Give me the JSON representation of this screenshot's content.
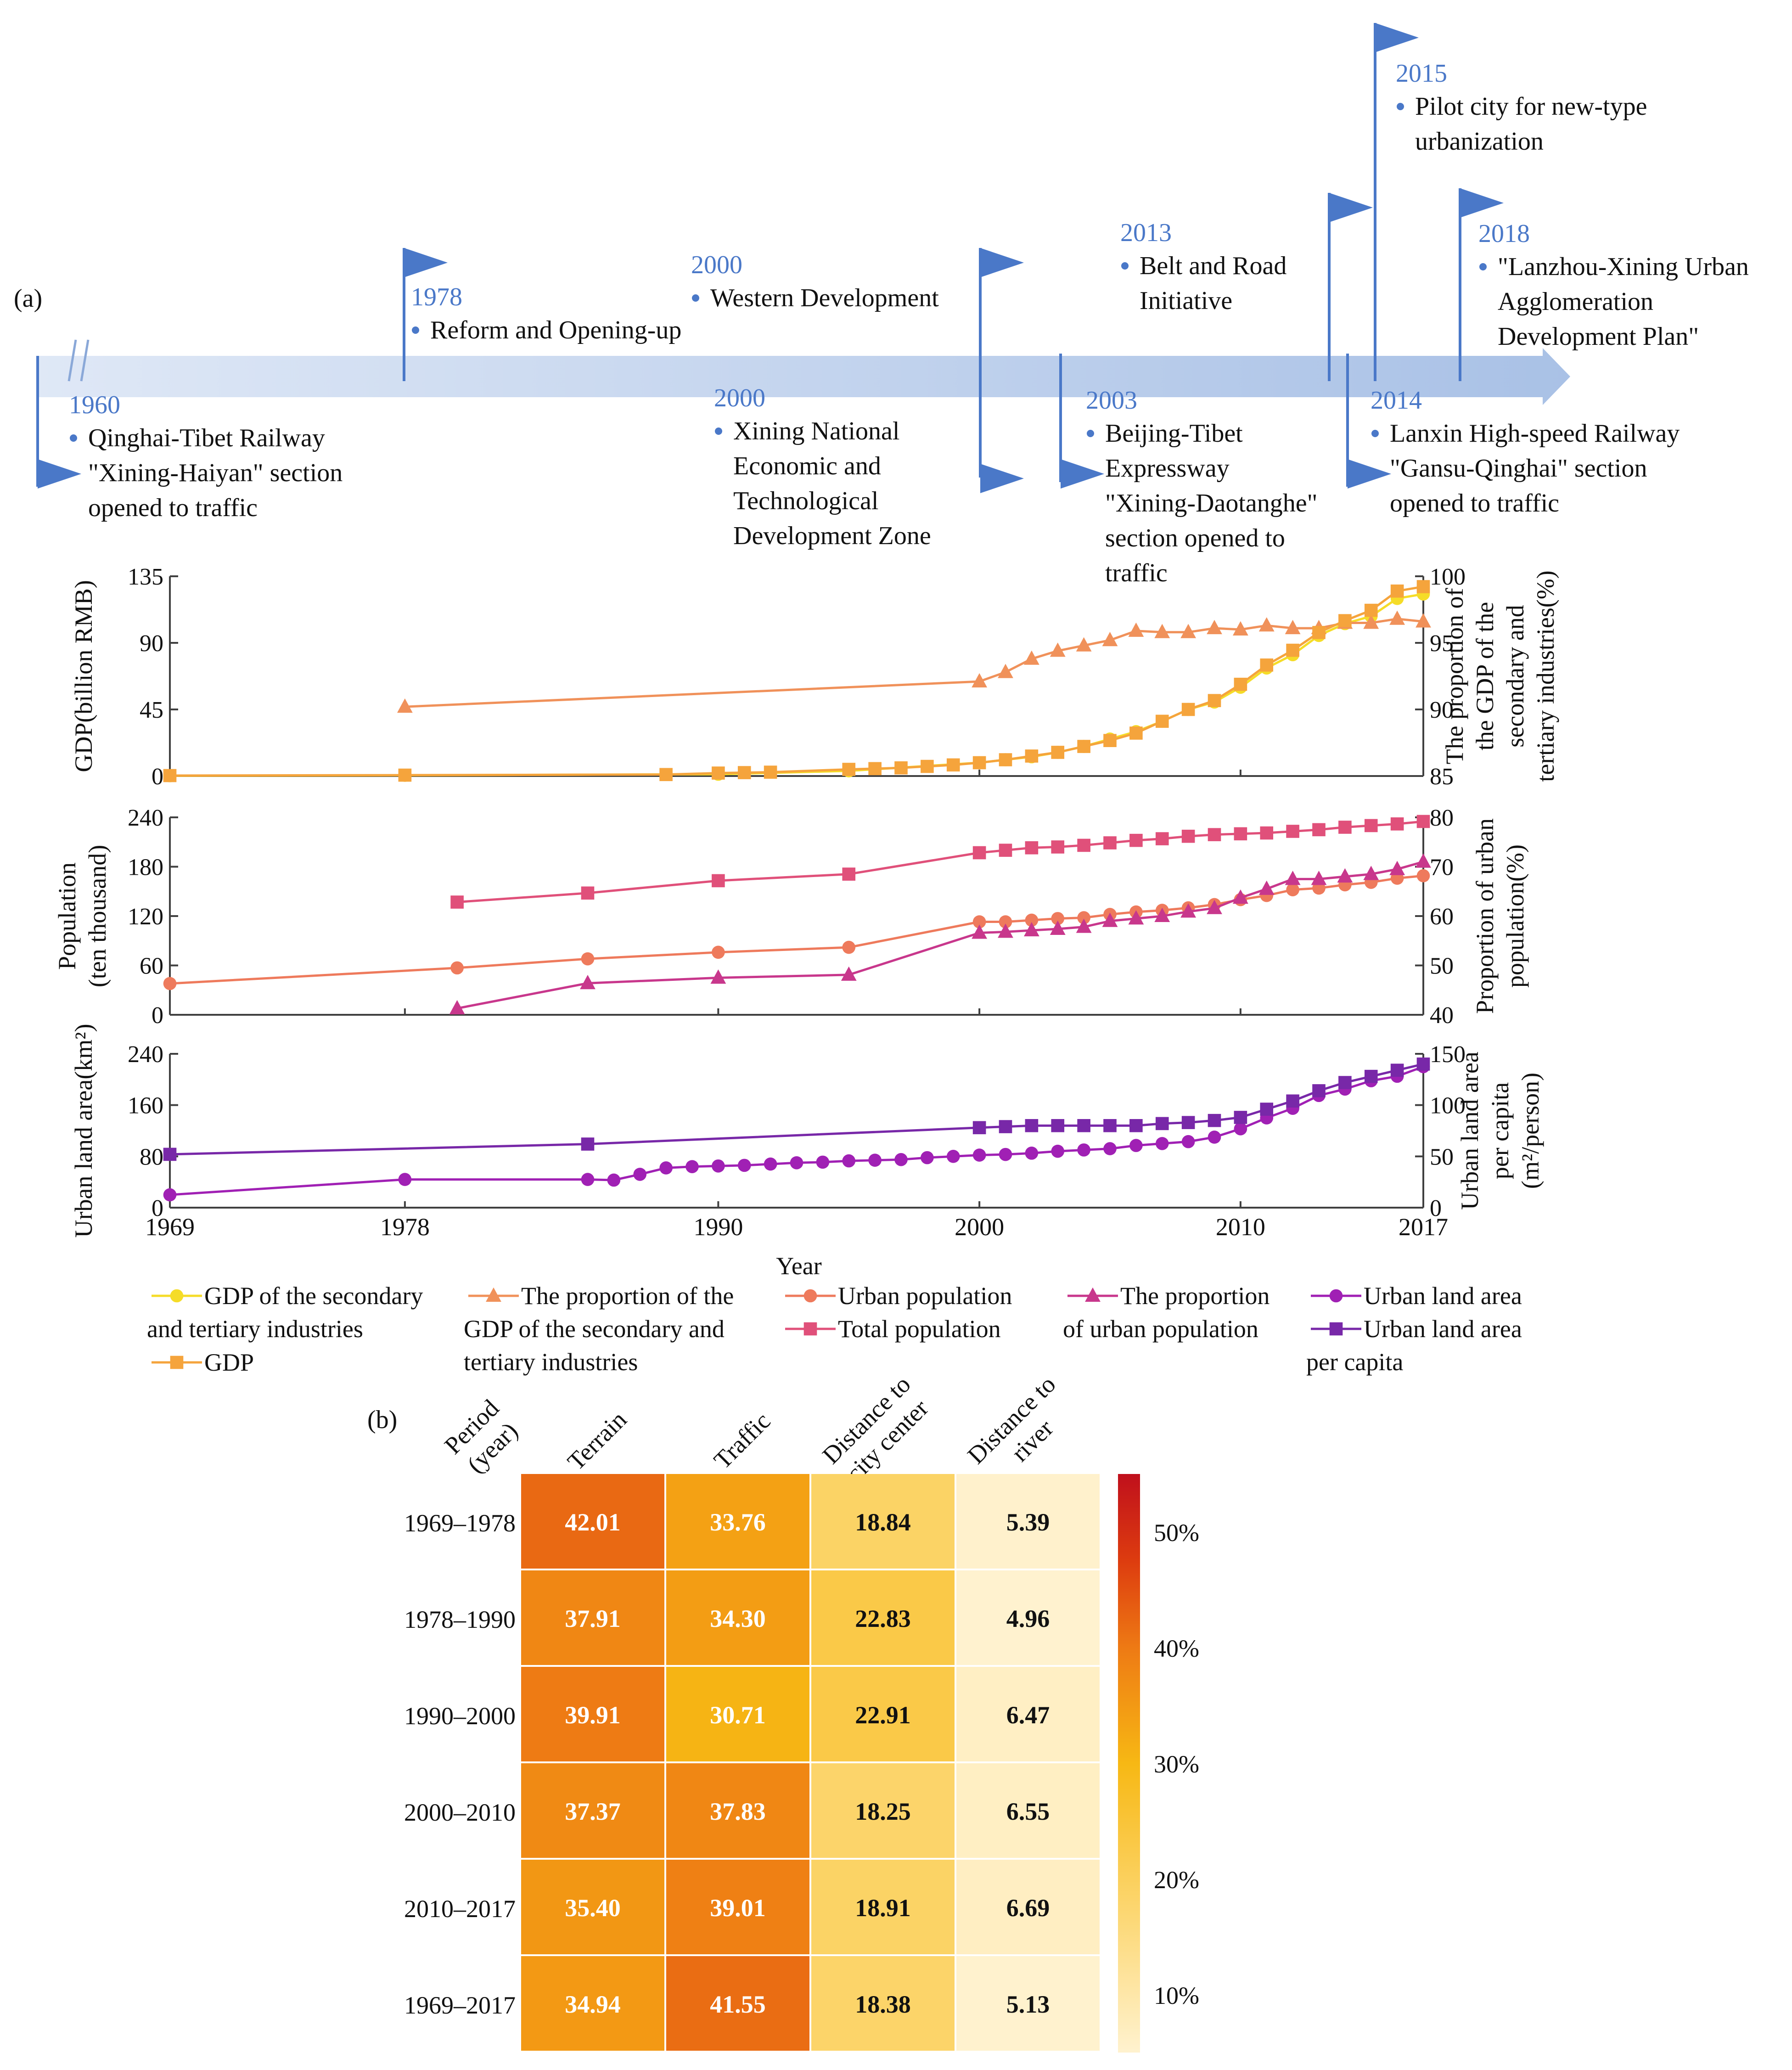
{
  "timeline": {
    "panel_label": "(a)",
    "events": [
      {
        "year": "1960",
        "lines": [
          "Qinghai-Tibet Railway",
          "\"Xining-Haiyan\" section",
          "opened to traffic"
        ]
      },
      {
        "year": "1978",
        "lines": [
          "Reform and Opening-up"
        ]
      },
      {
        "year": "2000",
        "lines": [
          "Western Development"
        ]
      },
      {
        "year": "2000",
        "lines": [
          " Xining National",
          "Economic and",
          "Technological",
          "Development Zone"
        ]
      },
      {
        "year": "2003",
        "lines": [
          "Beijing-Tibet",
          "Expressway",
          "\"Xining-Daotanghe\"",
          "section opened to",
          "traffic"
        ]
      },
      {
        "year": "2013",
        "lines": [
          "Belt and Road",
          "Initiative"
        ]
      },
      {
        "year": "2014",
        "lines": [
          "Lanxin High-speed Railway",
          "\"Gansu-Qinghai\" section",
          "opened to traffic"
        ]
      },
      {
        "year": "2015",
        "lines": [
          "Pilot city for new-type",
          "urbanization"
        ]
      },
      {
        "year": "2018",
        "lines": [
          "\"Lanzhou-Xining Urban",
          "Agglomeration",
          "Development Plan\""
        ]
      }
    ]
  },
  "chart_data": [
    {
      "type": "line",
      "panel": "gdp",
      "ylabel_left": "GDP(billion RMB)",
      "ylabel_right": [
        "The proportion of",
        "the GDP of the",
        "secondary and",
        "tertiary industries(%)"
      ],
      "ylim_left": [
        0,
        135
      ],
      "ylim_right": [
        85,
        100
      ],
      "yticks_left": [
        "0",
        "45",
        "90",
        "135"
      ],
      "yticks_right": [
        "85",
        "90",
        "95",
        "100"
      ],
      "series": [
        {
          "name": "GDP of the secondary and tertiary industries",
          "axis": "left",
          "color": "#f5dc28",
          "marker": "circle",
          "x": [
            1969,
            1978,
            1990,
            1995,
            2000,
            2001,
            2002,
            2003,
            2004,
            2005,
            2006,
            2007,
            2008,
            2009,
            2010,
            2011,
            2012,
            2013,
            2014,
            2015,
            2016,
            2017
          ],
          "y": [
            0.2,
            0.5,
            1.2,
            3.5,
            9,
            11,
            13,
            16,
            20,
            25,
            30,
            37,
            45,
            50,
            60,
            73,
            82,
            95,
            103,
            108,
            120,
            123
          ]
        },
        {
          "name": "The proportion of the GDP of the secondary and tertiary industries",
          "axis": "right",
          "color": "#f0915a",
          "marker": "triangle",
          "x": [
            1978,
            2000,
            2001,
            2002,
            2003,
            2004,
            2005,
            2006,
            2007,
            2008,
            2009,
            2010,
            2011,
            2012,
            2013,
            2014,
            2015,
            2016,
            2017
          ],
          "y": [
            90.2,
            92.1,
            92.8,
            93.8,
            94.4,
            94.8,
            95.2,
            95.9,
            95.8,
            95.8,
            96.1,
            96.0,
            96.3,
            96.1,
            96.1,
            96.5,
            96.5,
            96.8,
            96.6
          ]
        },
        {
          "name": "GDP",
          "axis": "left",
          "color": "#f5a43c",
          "marker": "square",
          "x": [
            1969,
            1978,
            1988,
            1990,
            1991,
            1992,
            1995,
            1996,
            1997,
            1998,
            1999,
            2000,
            2001,
            2002,
            2003,
            2004,
            2005,
            2006,
            2007,
            2008,
            2009,
            2010,
            2011,
            2012,
            2013,
            2014,
            2015,
            2016,
            2017
          ],
          "y": [
            0.3,
            0.6,
            1,
            2,
            2.3,
            2.6,
            4.5,
            5,
            5.5,
            6.5,
            7.5,
            9,
            11,
            13.5,
            16,
            20,
            24,
            29,
            37,
            45,
            51,
            62,
            75,
            85,
            97,
            105,
            112,
            125,
            128
          ]
        }
      ]
    },
    {
      "type": "line",
      "panel": "population",
      "ylabel_left": [
        "Population",
        "(ten thousand)"
      ],
      "ylabel_right": [
        "Proportion of urban",
        "population(%)"
      ],
      "ylim_left": [
        0,
        240
      ],
      "ylim_right": [
        40,
        80
      ],
      "yticks_left": [
        "0",
        "60",
        "120",
        "180",
        "240"
      ],
      "yticks_right": [
        "40",
        "50",
        "60",
        "70",
        "80"
      ],
      "series": [
        {
          "name": "Urban population",
          "axis": "left",
          "color": "#ee7a5c",
          "marker": "circle",
          "x": [
            1969,
            1980,
            1985,
            1990,
            1995,
            2000,
            2001,
            2002,
            2003,
            2004,
            2005,
            2006,
            2007,
            2008,
            2009,
            2010,
            2011,
            2012,
            2013,
            2014,
            2015,
            2016,
            2017
          ],
          "y": [
            38,
            57,
            68,
            76,
            82,
            113,
            113,
            115,
            117,
            118,
            122,
            125,
            127,
            130,
            134,
            140,
            145,
            152,
            154,
            158,
            161,
            166,
            169
          ]
        },
        {
          "name": "Total population",
          "axis": "left",
          "color": "#e0507a",
          "marker": "square",
          "x": [
            1980,
            1985,
            1990,
            1995,
            2000,
            2001,
            2002,
            2003,
            2004,
            2005,
            2006,
            2007,
            2008,
            2009,
            2010,
            2011,
            2012,
            2013,
            2014,
            2015,
            2016,
            2017
          ],
          "y": [
            137,
            148,
            163,
            171,
            197,
            200,
            203,
            204,
            206,
            209,
            212,
            214,
            217,
            219,
            220,
            221,
            223,
            225,
            228,
            230,
            232,
            235
          ]
        },
        {
          "name": "The proportion of urban population",
          "axis": "right",
          "color": "#c8378c",
          "marker": "triangle",
          "x": [
            1980,
            1985,
            1990,
            1995,
            2000,
            2001,
            2002,
            2003,
            2004,
            2005,
            2006,
            2007,
            2008,
            2009,
            2010,
            2011,
            2012,
            2013,
            2014,
            2015,
            2016,
            2017
          ],
          "y": [
            41.3,
            46.4,
            47.5,
            48.1,
            56.6,
            56.8,
            57.1,
            57.4,
            57.8,
            59.0,
            59.5,
            60.0,
            60.9,
            61.6,
            63.7,
            65.5,
            67.5,
            67.5,
            68.0,
            68.5,
            69.5,
            71.0
          ]
        }
      ]
    },
    {
      "type": "line",
      "panel": "land",
      "ylabel_left": "Urban land area(km²)",
      "ylabel_right": [
        "Urban land area",
        "per capita",
        "(m²/person)"
      ],
      "ylim_left": [
        0,
        240
      ],
      "ylim_right": [
        0,
        150
      ],
      "yticks_left": [
        "0",
        "80",
        "160",
        "240"
      ],
      "yticks_right": [
        "0",
        "50",
        "100",
        "150"
      ],
      "xlabel": "Year",
      "xticks": [
        "1969",
        "1978",
        "1990",
        "2000",
        "2010",
        "2017"
      ],
      "xlim": [
        1969,
        2017
      ],
      "series": [
        {
          "name": "Urban land area",
          "axis": "left",
          "color": "#a020b4",
          "marker": "circle",
          "x": [
            1969,
            1978,
            1985,
            1986,
            1987,
            1988,
            1989,
            1990,
            1991,
            1992,
            1993,
            1994,
            1995,
            1996,
            1997,
            1998,
            1999,
            2000,
            2001,
            2002,
            2003,
            2004,
            2005,
            2006,
            2007,
            2008,
            2009,
            2010,
            2011,
            2012,
            2013,
            2014,
            2015,
            2016,
            2017
          ],
          "y": [
            20,
            44,
            44,
            43,
            52,
            62,
            64,
            65,
            66,
            68,
            70,
            71,
            73,
            74,
            75,
            78,
            80,
            82,
            83,
            85,
            88,
            90,
            92,
            97,
            100,
            103,
            110,
            123,
            140,
            155,
            175,
            185,
            198,
            205,
            220
          ]
        },
        {
          "name": "Urban land area per capita",
          "axis": "right",
          "color": "#7828a8",
          "marker": "square",
          "x": [
            1969,
            1985,
            2000,
            2001,
            2002,
            2003,
            2004,
            2005,
            2006,
            2007,
            2008,
            2009,
            2010,
            2011,
            2012,
            2013,
            2014,
            2015,
            2016,
            2017
          ],
          "y": [
            52,
            62,
            78,
            79,
            80,
            80,
            80,
            80,
            80,
            82,
            83,
            85,
            88,
            96,
            104,
            114,
            122,
            128,
            134,
            140
          ]
        }
      ]
    },
    {
      "type": "heatmap",
      "panel_label": "(b)",
      "row_header": [
        "Period",
        "(year)"
      ],
      "columns": [
        [
          "Terrain"
        ],
        [
          "Traffic"
        ],
        [
          "Distance to",
          "city center"
        ],
        [
          "Distance to",
          "river"
        ]
      ],
      "rows": [
        "1969–1978",
        "1978–1990",
        "1990–2000",
        "2000–2010",
        "2010–2017",
        "1969–2017"
      ],
      "values": [
        [
          42.01,
          33.76,
          18.84,
          5.39
        ],
        [
          37.91,
          34.3,
          22.83,
          4.96
        ],
        [
          39.91,
          30.71,
          22.91,
          6.47
        ],
        [
          37.37,
          37.83,
          18.25,
          6.55
        ],
        [
          35.4,
          39.01,
          18.91,
          6.69
        ],
        [
          34.94,
          41.55,
          18.38,
          5.13
        ]
      ],
      "colorbar_ticks": [
        "10%",
        "20%",
        "30%",
        "40%",
        "50%"
      ],
      "colorbar_range": [
        5,
        55
      ]
    }
  ],
  "legend": [
    {
      "series": "GDP of the secondary and tertiary industries",
      "lines": [
        "GDP of the secondary",
        "and tertiary industries"
      ],
      "color": "#f5dc28",
      "marker": "circle"
    },
    {
      "series": "GDP",
      "lines": [
        "GDP"
      ],
      "color": "#f5a43c",
      "marker": "square"
    },
    {
      "series": "The proportion of the GDP of the secondary and tertiary industries",
      "lines": [
        "The proportion of the",
        "GDP of the secondary and",
        "tertiary industries"
      ],
      "color": "#f0915a",
      "marker": "triangle"
    },
    {
      "series": "Urban population",
      "lines": [
        "Urban population"
      ],
      "color": "#ee7a5c",
      "marker": "circle"
    },
    {
      "series": "Total population",
      "lines": [
        "Total population"
      ],
      "color": "#e0507a",
      "marker": "square"
    },
    {
      "series": "The proportion of urban population",
      "lines": [
        "The proportion",
        "of urban population"
      ],
      "color": "#c8378c",
      "marker": "triangle"
    },
    {
      "series": "Urban land area",
      "lines": [
        "Urban land area"
      ],
      "color": "#a020b4",
      "marker": "circle"
    },
    {
      "series": "Urban land area per capita",
      "lines": [
        "Urban land area",
        "per capita"
      ],
      "color": "#7828a8",
      "marker": "square"
    }
  ],
  "colors": {
    "timeline": "#4a78c8",
    "arrow": "#c5d6ee",
    "axis": "#404040"
  }
}
